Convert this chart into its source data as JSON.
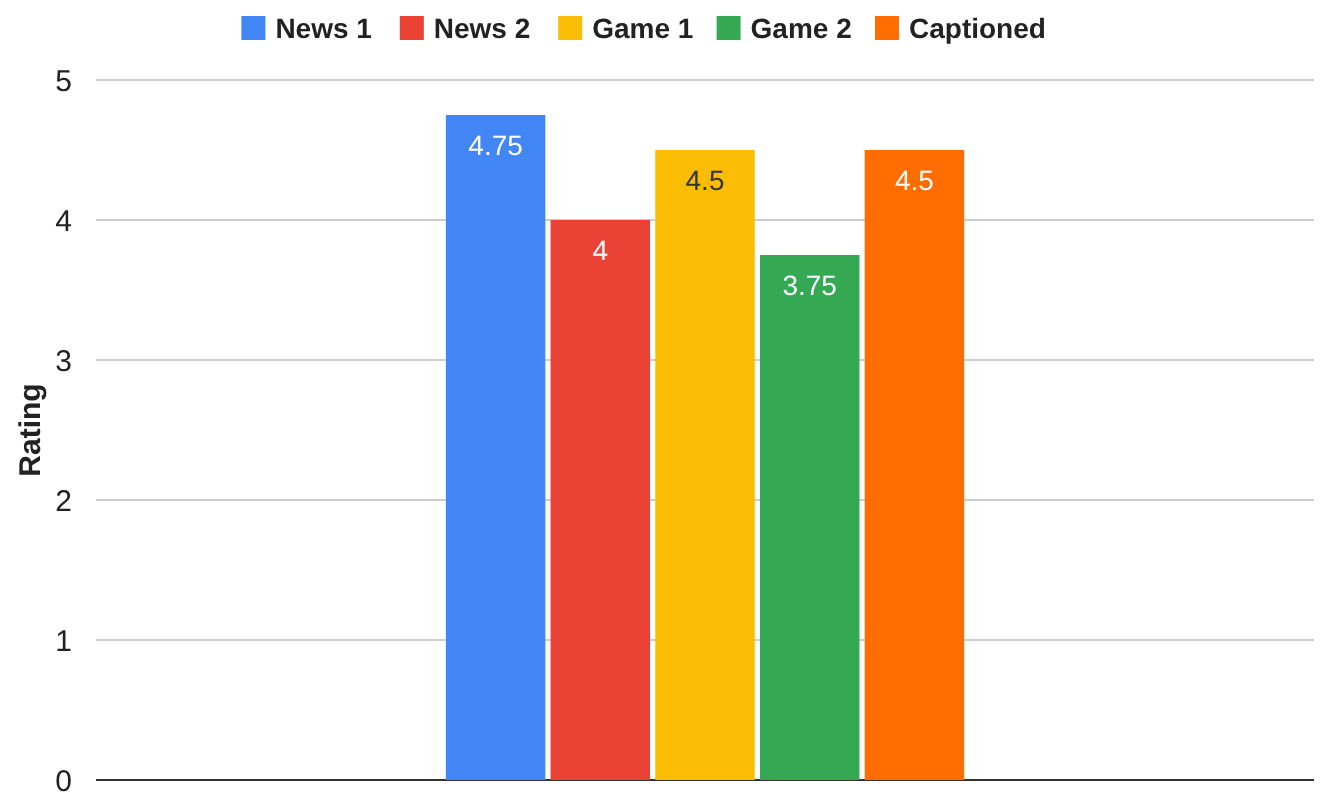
{
  "chart_data": {
    "type": "bar",
    "ylabel": "Rating",
    "categories": [
      null
    ],
    "series": [
      {
        "name": "News 1",
        "color": "#4285f4",
        "values": [
          4.75
        ]
      },
      {
        "name": "News 2",
        "color": "#ea4335",
        "values": [
          4
        ]
      },
      {
        "name": "Game 1",
        "color": "#fbbc04",
        "values": [
          4.5
        ]
      },
      {
        "name": "Game 2",
        "color": "#34a853",
        "values": [
          3.75
        ]
      },
      {
        "name": "Captioned",
        "color": "#ff6d01",
        "values": [
          4.5
        ]
      }
    ],
    "ylim": [
      0,
      5
    ],
    "yticks": [
      0,
      1,
      2,
      3,
      4,
      5
    ],
    "grid": "y",
    "legend": "top",
    "data_labels": true
  }
}
